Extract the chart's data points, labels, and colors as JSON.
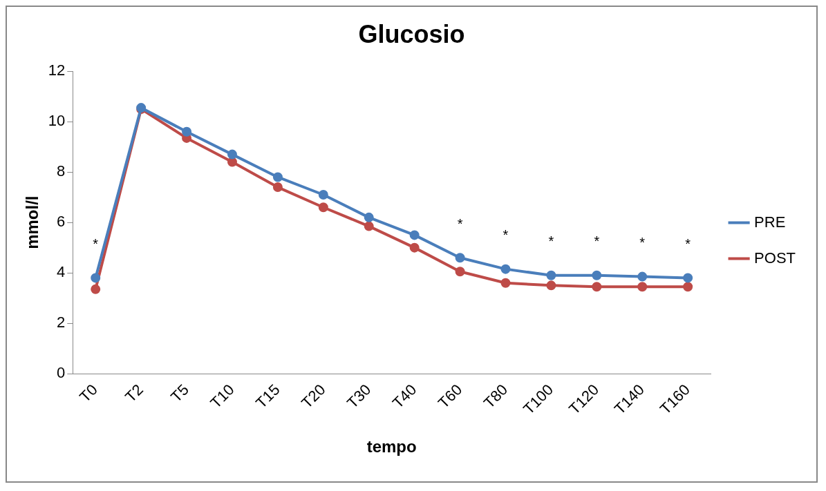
{
  "chart_data": {
    "type": "line",
    "title": "Glucosio",
    "xlabel": "tempo",
    "ylabel": "mmol/l",
    "categories": [
      "T0",
      "T2",
      "T5",
      "T10",
      "T15",
      "T20",
      "T30",
      "T40",
      "T60",
      "T80",
      "T100",
      "T120",
      "T140",
      "T160"
    ],
    "series": [
      {
        "name": "PRE",
        "color": "#4a7ebb",
        "values": [
          3.8,
          10.55,
          9.6,
          8.7,
          7.8,
          7.1,
          6.2,
          5.5,
          4.6,
          4.15,
          3.9,
          3.9,
          3.85,
          3.8
        ]
      },
      {
        "name": "POST",
        "color": "#be4b48",
        "values": [
          3.35,
          10.5,
          9.35,
          8.4,
          7.4,
          6.6,
          5.85,
          5.0,
          4.05,
          3.6,
          3.5,
          3.45,
          3.45,
          3.45
        ]
      }
    ],
    "ylim": [
      0,
      12
    ],
    "yticks": [
      0,
      2,
      4,
      6,
      8,
      10,
      12
    ],
    "grid": false,
    "legend": "right",
    "marker": "circle",
    "line_style": "solid",
    "annotations": [
      {
        "text": "*",
        "x": "T0",
        "y": 3.8
      },
      {
        "text": "*",
        "x": "T60",
        "y": 4.6
      },
      {
        "text": "*",
        "x": "T80",
        "y": 4.15
      },
      {
        "text": "*",
        "x": "T100",
        "y": 3.9
      },
      {
        "text": "*",
        "x": "T120",
        "y": 3.9
      },
      {
        "text": "*",
        "x": "T140",
        "y": 3.85
      },
      {
        "text": "*",
        "x": "T160",
        "y": 3.8
      }
    ]
  }
}
